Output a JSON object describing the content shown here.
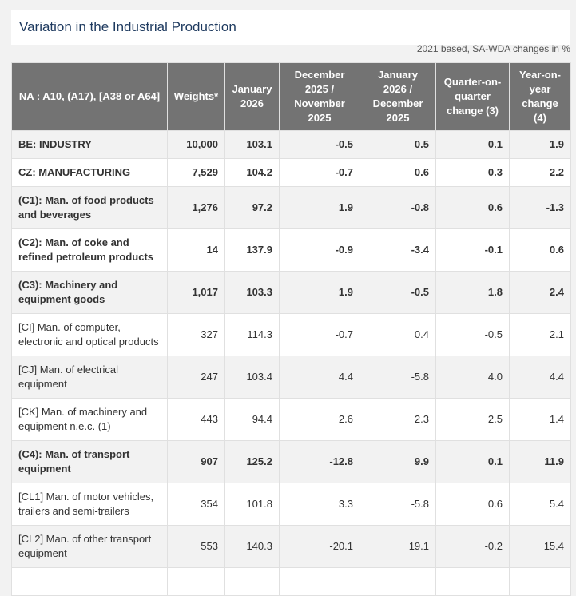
{
  "title": "Variation in the Industrial Production",
  "subtitle": "2021 based, SA-WDA changes in %",
  "table": {
    "headers": [
      "NA : A10, (A17), [A38 or A64]",
      "Weights*",
      "January 2026",
      "December 2025 / November 2025",
      "January 2026 / December 2025",
      "Quarter-on-quarter change (3)",
      "Year-on-year change (4)"
    ],
    "rows": [
      {
        "bold": true,
        "cells": [
          "BE: INDUSTRY",
          "10,000",
          "103.1",
          "-0.5",
          "0.5",
          "0.1",
          "1.9"
        ]
      },
      {
        "bold": true,
        "cells": [
          "CZ: MANUFACTURING",
          "7,529",
          "104.2",
          "-0.7",
          "0.6",
          "0.3",
          "2.2"
        ]
      },
      {
        "bold": true,
        "cells": [
          "(C1): Man. of food products and beverages",
          "1,276",
          "97.2",
          "1.9",
          "-0.8",
          "0.6",
          "-1.3"
        ]
      },
      {
        "bold": true,
        "cells": [
          "(C2): Man. of coke and refined petroleum products",
          "14",
          "137.9",
          "-0.9",
          "-3.4",
          "-0.1",
          "0.6"
        ]
      },
      {
        "bold": true,
        "cells": [
          "(C3): Machinery and equipment goods",
          "1,017",
          "103.3",
          "1.9",
          "-0.5",
          "1.8",
          "2.4"
        ]
      },
      {
        "bold": false,
        "cells": [
          "[CI] Man. of computer, electronic and optical products",
          "327",
          "114.3",
          "-0.7",
          "0.4",
          "-0.5",
          "2.1"
        ]
      },
      {
        "bold": false,
        "cells": [
          "[CJ] Man. of electrical equipment",
          "247",
          "103.4",
          "4.4",
          "-5.8",
          "4.0",
          "4.4"
        ]
      },
      {
        "bold": false,
        "cells": [
          "[CK] Man. of machinery and equipment n.e.c. (1)",
          "443",
          "94.4",
          "2.6",
          "2.3",
          "2.5",
          "1.4"
        ]
      },
      {
        "bold": true,
        "cells": [
          "(C4): Man. of transport equipment",
          "907",
          "125.2",
          "-12.8",
          "9.9",
          "0.1",
          "11.9"
        ]
      },
      {
        "bold": false,
        "cells": [
          "[CL1] Man. of motor vehicles, trailers and semi-trailers",
          "354",
          "101.8",
          "3.3",
          "-5.8",
          "0.6",
          "5.4"
        ]
      },
      {
        "bold": false,
        "cells": [
          "[CL2] Man. of other transport equipment",
          "553",
          "140.3",
          "-20.1",
          "19.1",
          "-0.2",
          "15.4"
        ]
      }
    ]
  }
}
